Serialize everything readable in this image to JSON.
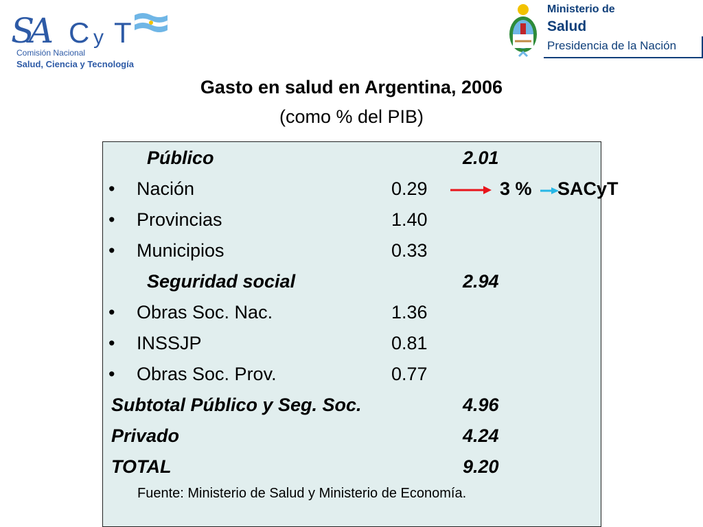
{
  "logos": {
    "sacyt": {
      "mark": "SACyT",
      "line1": "Comisión Nacional",
      "line2": "Salud, Ciencia y Tecnología",
      "flag_icon": "argentina-flag-icon"
    },
    "ministry": {
      "seal_icon": "argentina-coat-of-arms-icon",
      "line1": "Ministerio de",
      "line2": "Salud",
      "line3": "Presidencia de la Nación"
    }
  },
  "title": "Gasto en salud en Argentina, 2006",
  "subtitle": "(como % del PIB)",
  "table": {
    "rows": [
      {
        "label": "Público",
        "value": "",
        "total": "2.01",
        "style": "section",
        "bullet": ""
      },
      {
        "label": "Nación",
        "value": "0.29",
        "total": "",
        "style": "item",
        "bullet": "•"
      },
      {
        "label": "Provincias",
        "value": "1.40",
        "total": "",
        "style": "item",
        "bullet": "•"
      },
      {
        "label": "Municipios",
        "value": "0.33",
        "total": "",
        "style": "item",
        "bullet": "•"
      },
      {
        "label": "Seguridad social",
        "value": "",
        "total": "2.94",
        "style": "section",
        "bullet": ""
      },
      {
        "label": "Obras Soc. Nac.",
        "value": "1.36",
        "total": "",
        "style": "item",
        "bullet": "•"
      },
      {
        "label": "INSSJP",
        "value": "0.81",
        "total": "",
        "style": "item",
        "bullet": "•"
      },
      {
        "label": "Obras Soc. Prov.",
        "value": "0.77",
        "total": "",
        "style": "item",
        "bullet": "•"
      },
      {
        "label": "Subtotal Público y Seg. Soc.",
        "value": "",
        "total": "4.96",
        "style": "summary",
        "bullet": ""
      },
      {
        "label": "Privado",
        "value": "",
        "total": "4.24",
        "style": "summary",
        "bullet": ""
      },
      {
        "label": "TOTAL",
        "value": "",
        "total": "9.20",
        "style": "summary",
        "bullet": ""
      }
    ],
    "source": "Fuente: Ministerio de Salud y Ministerio de Economía."
  },
  "annotation": {
    "percent": "3 %",
    "org": "SACyT",
    "arrow1_color": "#e8141b",
    "arrow2_color": "#27b7e6"
  }
}
